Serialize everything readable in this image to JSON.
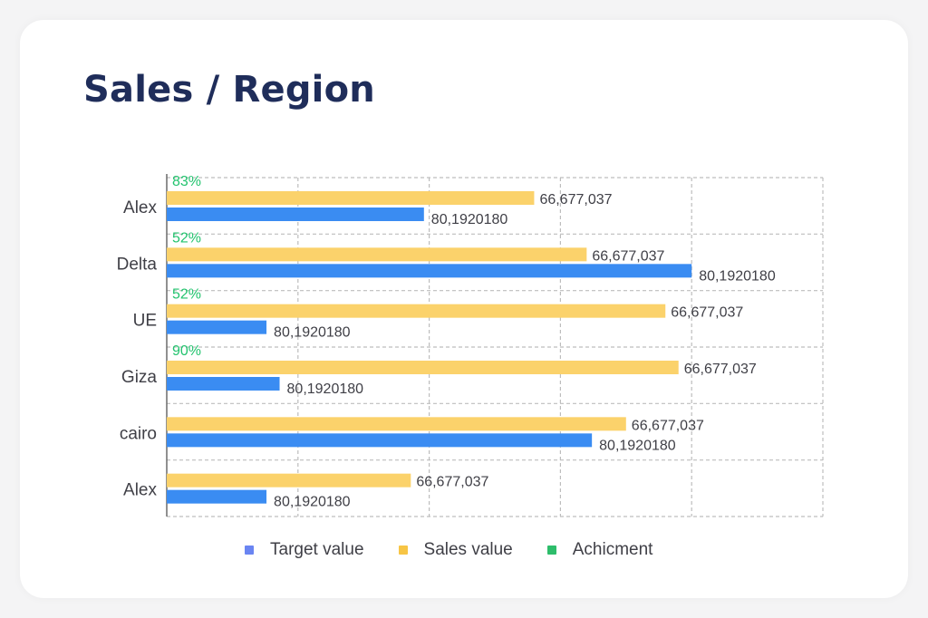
{
  "title": "Sales / Region",
  "colors": {
    "target": "#3a8cf2",
    "sales": "#fbd26b",
    "achievement": "#22c36e",
    "achievement_legend": "#2ebd6b",
    "target_legend": "#6a85f2",
    "grid": "#bdbdbd",
    "axis": "#6b6b6b",
    "text": "#3f3f46"
  },
  "legend": [
    {
      "label": "Target value",
      "color": "#6a85f2"
    },
    {
      "label": "Sales value",
      "color": "#f7c545"
    },
    {
      "label": "Achicment",
      "color": "#2ebd6b"
    }
  ],
  "chart_data": {
    "type": "bar",
    "orientation": "horizontal",
    "categories": [
      "Alex",
      "Delta",
      "UE",
      "Giza",
      "cairo",
      "Alex"
    ],
    "series": [
      {
        "name": "Sales value",
        "values": [
          70,
          80,
          95,
          97.5,
          87.5,
          46.5
        ],
        "labels": [
          "66,677,037",
          "66,677,037",
          "66,677,037",
          "66,677,037",
          "66,677,037",
          "66,677,037"
        ]
      },
      {
        "name": "Target value",
        "values": [
          49,
          100,
          19,
          21.5,
          81,
          19
        ],
        "labels": [
          "80,1920180",
          "80,1920180",
          "80,1920180",
          "80,1920180",
          "80,1920180",
          "80,1920180"
        ]
      }
    ],
    "achievement": [
      "83%",
      "52%",
      "52%",
      "90%",
      "",
      ""
    ],
    "xlim": [
      0,
      125
    ],
    "grid": true,
    "legend_position": "bottom"
  }
}
